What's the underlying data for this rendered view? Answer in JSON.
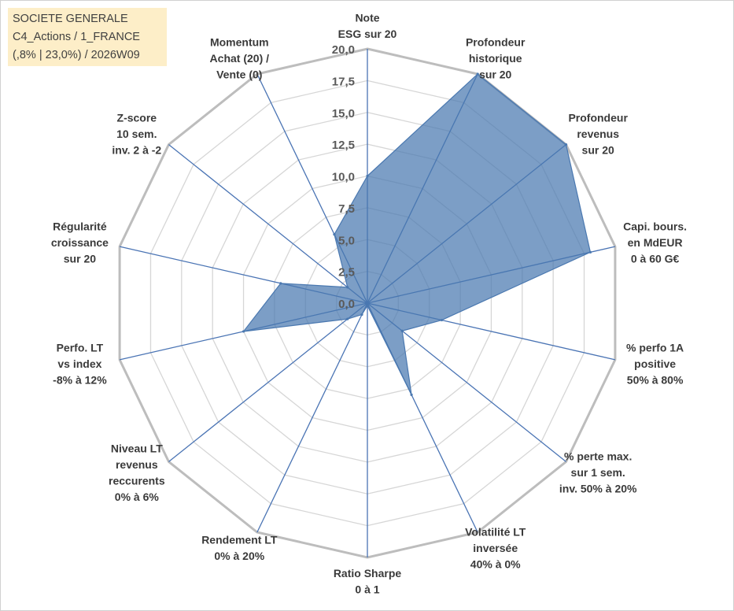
{
  "header": {
    "line1": "SOCIETE GENERALE",
    "line2": "C4_Actions / 1_FRANCE",
    "line3": "(,8% | 23,0%) / 2026W09"
  },
  "chart_data": {
    "type": "radar",
    "rlim": [
      0,
      20
    ],
    "ticks": [
      "0,0",
      "2,5",
      "5,0",
      "7,5",
      "10,0",
      "12,5",
      "15,0",
      "17,5",
      "20,0"
    ],
    "grid": true,
    "categories": [
      [
        "Note",
        "ESG sur 20"
      ],
      [
        "Profondeur",
        "historique",
        "sur 20"
      ],
      [
        "Profondeur",
        "revenus",
        "sur 20"
      ],
      [
        "Capi. bours.",
        "en MdEUR",
        "0 à 60 G€"
      ],
      [
        "% perfo 1A",
        "positive",
        "50% à 80%"
      ],
      [
        "% perte max.",
        "sur 1 sem.",
        "inv. 50% à 20%"
      ],
      [
        "Volatilité LT",
        "inversée",
        "40% à 0%"
      ],
      [
        "Ratio Sharpe",
        "0 à 1"
      ],
      [
        "Rendement LT",
        "0% à 20%"
      ],
      [
        "Niveau LT",
        "revenus",
        "reccurents",
        "0% à 6%"
      ],
      [
        "Perfo. LT",
        "vs index",
        "-8% à 12%"
      ],
      [
        "Régularité",
        "croissance",
        "sur 20"
      ],
      [
        "Z-score",
        "10 sem.",
        "inv. 2 à -2"
      ],
      [
        "Momentum",
        "Achat (20) /",
        "Vente (0)"
      ]
    ],
    "series": [
      {
        "values": [
          10.0,
          20.0,
          20.0,
          18.0,
          6.0,
          3.5,
          8.0,
          0.2,
          1.0,
          2.0,
          10.0,
          7.0,
          2.0,
          6.0
        ],
        "color": "#4a78b0"
      }
    ]
  }
}
